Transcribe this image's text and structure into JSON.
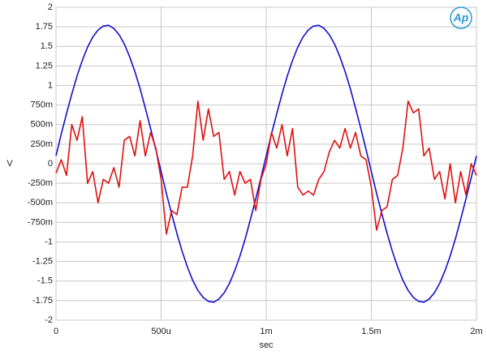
{
  "chart_data": {
    "type": "line",
    "logo": "Ap",
    "xlabel": "sec",
    "ylabel": "V",
    "x": [
      0,
      2.5e-05,
      5e-05,
      7.5e-05,
      0.0001,
      0.000125,
      0.00015,
      0.000175,
      0.0002,
      0.000225,
      0.00025,
      0.000275,
      0.0003,
      0.000325,
      0.00035,
      0.000375,
      0.0004,
      0.000425,
      0.00045,
      0.000475,
      0.0005,
      0.000525,
      0.00055,
      0.000575,
      0.0006,
      0.000625,
      0.00065,
      0.000675,
      0.0007,
      0.000725,
      0.00075,
      0.000775,
      0.0008,
      0.000825,
      0.00085,
      0.000875,
      0.0009,
      0.000925,
      0.00095,
      0.000975,
      0.001,
      0.001025,
      0.00105,
      0.001075,
      0.0011,
      0.001125,
      0.00115,
      0.001175,
      0.0012,
      0.001225,
      0.00125,
      0.001275,
      0.0013,
      0.001325,
      0.00135,
      0.001375,
      0.0014,
      0.001425,
      0.00145,
      0.001475,
      0.0015,
      0.001525,
      0.00155,
      0.001575,
      0.0016,
      0.001625,
      0.00165,
      0.001675,
      0.0017,
      0.001725,
      0.00175,
      0.001775,
      0.0018,
      0.001825,
      0.00185,
      0.001875,
      0.0019,
      0.001925,
      0.00195,
      0.001975,
      0.002
    ],
    "series": [
      {
        "color": "#1010d0",
        "values": [
          0.1,
          0.38,
          0.64,
          0.89,
          1.12,
          1.32,
          1.49,
          1.62,
          1.71,
          1.76,
          1.77,
          1.73,
          1.65,
          1.53,
          1.37,
          1.18,
          0.96,
          0.71,
          0.45,
          0.18,
          -0.1,
          -0.38,
          -0.64,
          -0.89,
          -1.12,
          -1.32,
          -1.49,
          -1.62,
          -1.71,
          -1.76,
          -1.77,
          -1.73,
          -1.65,
          -1.53,
          -1.37,
          -1.18,
          -0.96,
          -0.71,
          -0.45,
          -0.18,
          0.1,
          0.38,
          0.64,
          0.89,
          1.12,
          1.32,
          1.49,
          1.62,
          1.71,
          1.76,
          1.77,
          1.73,
          1.65,
          1.53,
          1.37,
          1.18,
          0.96,
          0.71,
          0.45,
          0.18,
          -0.1,
          -0.38,
          -0.64,
          -0.89,
          -1.12,
          -1.32,
          -1.49,
          -1.62,
          -1.71,
          -1.76,
          -1.77,
          -1.73,
          -1.65,
          -1.53,
          -1.37,
          -1.18,
          -0.96,
          -0.71,
          -0.45,
          -0.18,
          0.1
        ]
      },
      {
        "color": "#e01010",
        "values": [
          -0.12,
          0.05,
          -0.15,
          0.5,
          0.3,
          0.6,
          -0.25,
          -0.1,
          -0.5,
          -0.2,
          -0.25,
          -0.05,
          -0.3,
          0.3,
          0.35,
          0.1,
          0.55,
          0.1,
          0.4,
          0.2,
          -0.2,
          -0.9,
          -0.6,
          -0.65,
          -0.3,
          -0.3,
          0.1,
          0.8,
          0.3,
          0.7,
          0.35,
          0.4,
          -0.2,
          -0.1,
          -0.4,
          -0.1,
          -0.25,
          -0.2,
          -0.6,
          -0.2,
          0.0,
          0.4,
          0.2,
          0.5,
          0.1,
          0.45,
          -0.3,
          -0.4,
          -0.35,
          -0.4,
          -0.2,
          -0.1,
          0.15,
          0.3,
          0.2,
          0.45,
          0.2,
          0.4,
          0.1,
          0.05,
          -0.3,
          -0.85,
          -0.6,
          -0.55,
          -0.2,
          -0.15,
          0.2,
          0.8,
          0.65,
          0.7,
          0.1,
          0.2,
          -0.2,
          -0.1,
          -0.45,
          0.0,
          -0.5,
          -0.1,
          -0.4,
          0.0,
          -0.15
        ]
      }
    ],
    "xlim": [
      0,
      0.002
    ],
    "xticks": [
      0,
      {
        "value": 0.0005,
        "label": "500u"
      },
      {
        "value": 0.001,
        "label": "1m"
      },
      {
        "value": 0.0015,
        "label": "1.5m"
      },
      {
        "value": 0.002,
        "label": "2m"
      }
    ],
    "ylim": [
      -2,
      2
    ],
    "yticks": [
      2,
      1.75,
      1.5,
      1.25,
      1,
      {
        "value": 0.75,
        "label": "750m"
      },
      {
        "value": 0.5,
        "label": "500m"
      },
      {
        "value": 0.25,
        "label": "250m"
      },
      0,
      {
        "value": -0.25,
        "label": "-250m"
      },
      {
        "value": -0.5,
        "label": "-500m"
      },
      {
        "value": -0.75,
        "label": "-750m"
      },
      -1,
      -1.25,
      -1.5,
      -1.75,
      -2
    ],
    "grid": true
  }
}
